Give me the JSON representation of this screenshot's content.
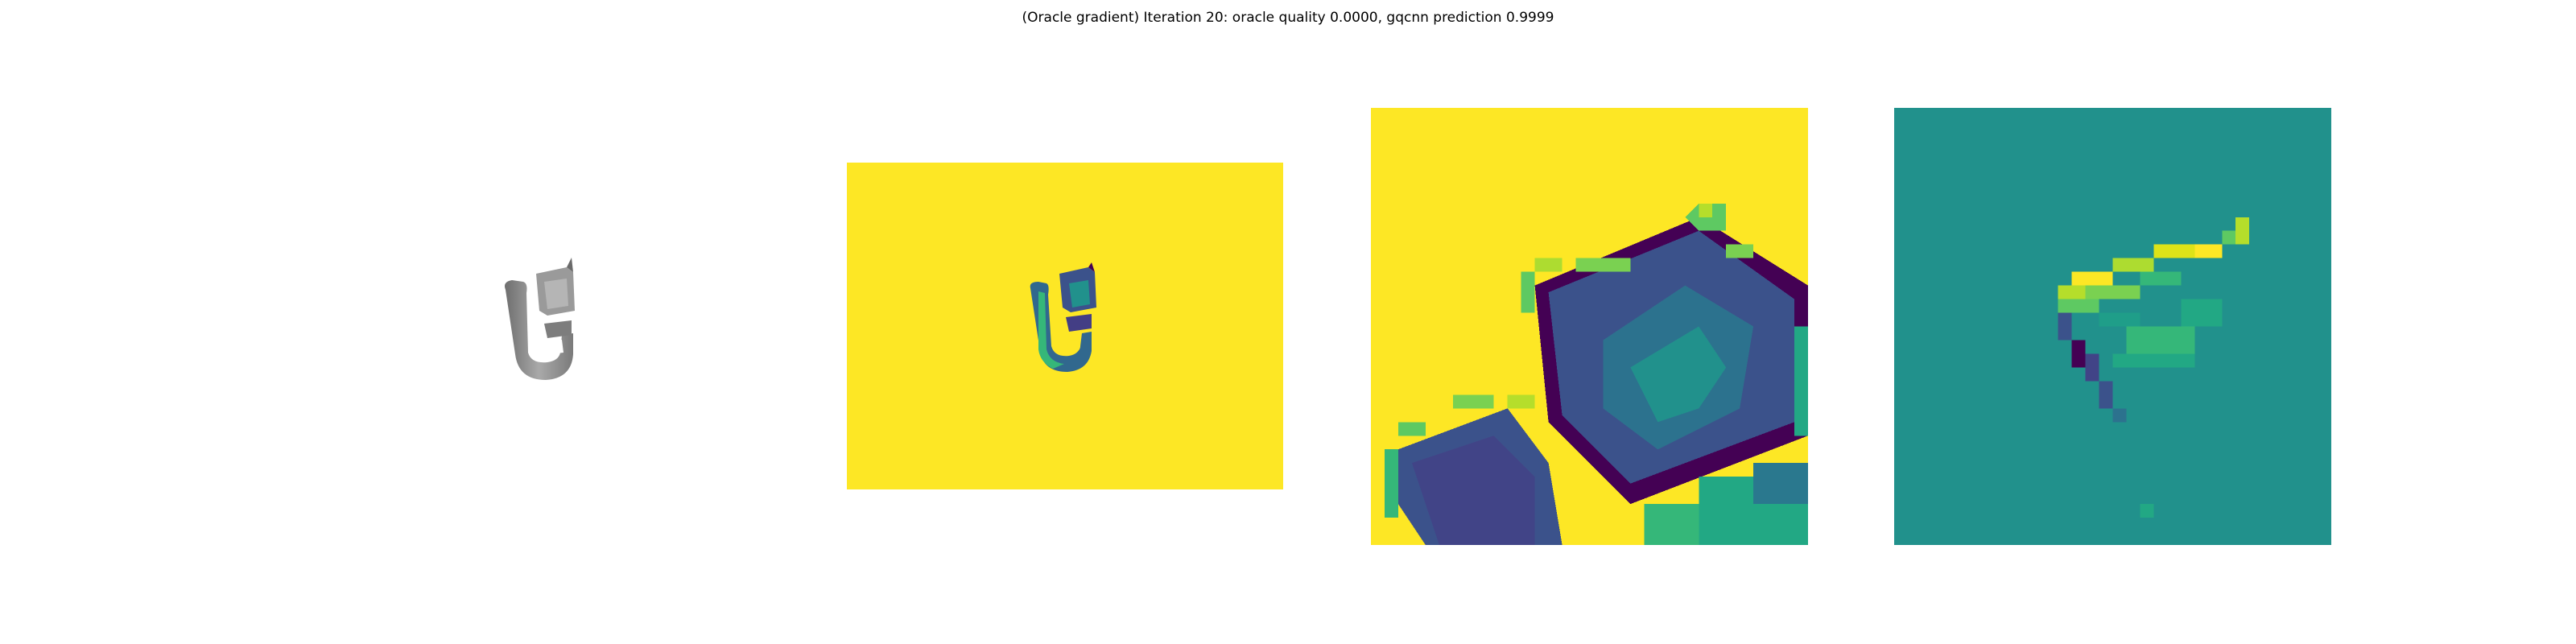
{
  "figure": {
    "title": "(Oracle gradient) Iteration 20: oracle quality 0.0000, gqcnn prediction 0.9999"
  },
  "colors": {
    "viridis_yellow": "#fde725",
    "viridis_teal": "#21918c",
    "viridis_purple": "#440154",
    "viridis_blue": "#3b528b",
    "viridis_green": "#5ec962",
    "object_gray": "#8c8c8c"
  }
}
